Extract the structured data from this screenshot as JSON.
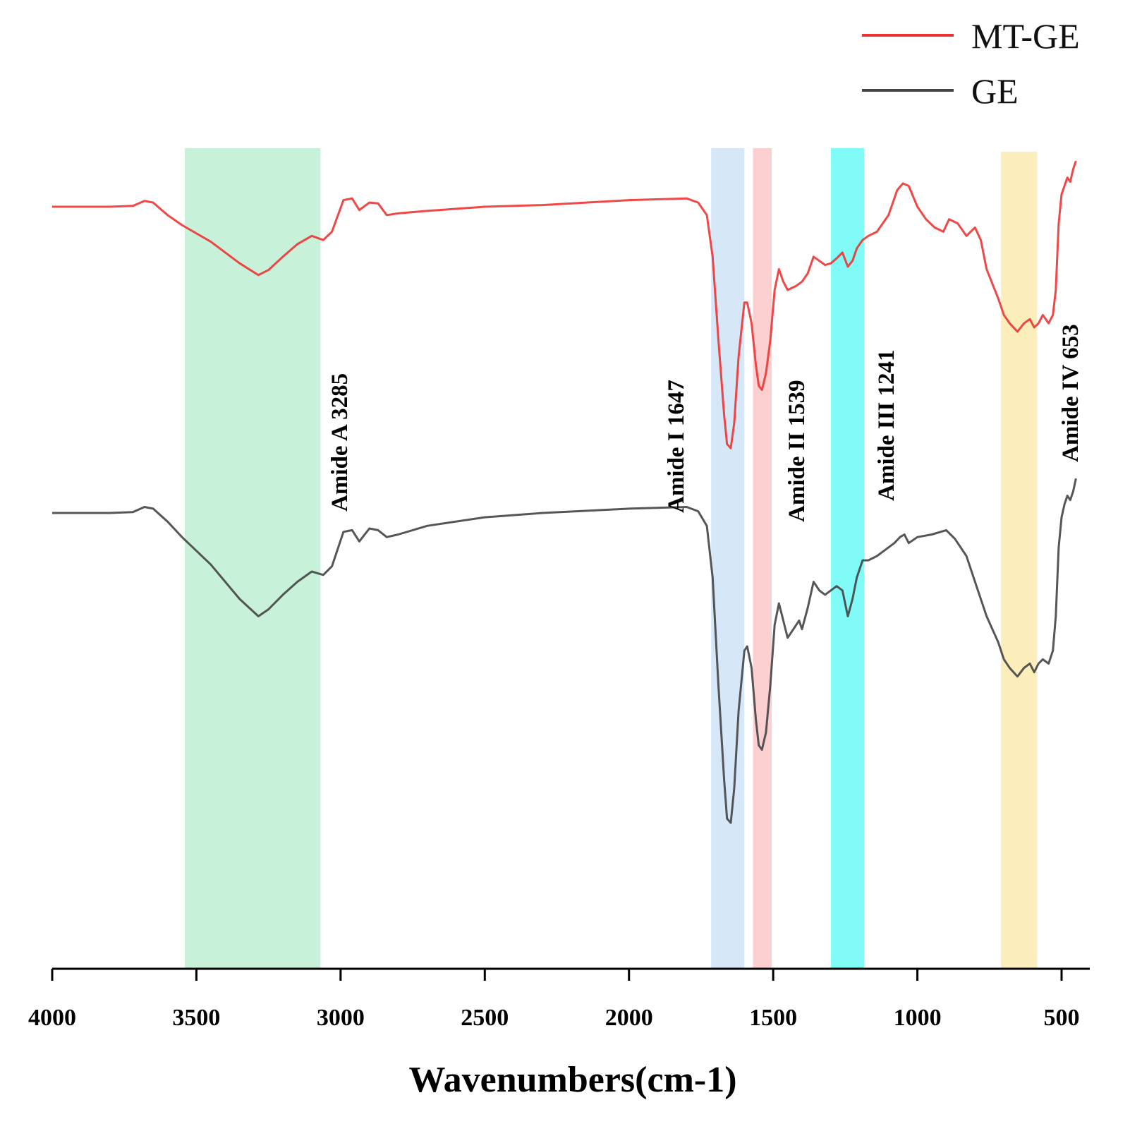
{
  "chart_data": {
    "type": "line",
    "title": "",
    "xlabel": "Wavenumbers(cm-1)",
    "ylabel": "",
    "xlim": [
      4000,
      450
    ],
    "x_reversed": true,
    "x_ticks": [
      4000,
      3500,
      3000,
      2500,
      2000,
      1500,
      1000,
      500
    ],
    "y_axis_shown": false,
    "grid": false,
    "legend_position": "top-right",
    "series": [
      {
        "name": "MT-GE",
        "color": "#ee3333",
        "points": [
          [
            4000,
            0.0
          ],
          [
            3800,
            0.0
          ],
          [
            3720,
            0.01
          ],
          [
            3680,
            0.07
          ],
          [
            3650,
            0.05
          ],
          [
            3600,
            -0.1
          ],
          [
            3550,
            -0.22
          ],
          [
            3450,
            -0.42
          ],
          [
            3350,
            -0.68
          ],
          [
            3285,
            -0.82
          ],
          [
            3250,
            -0.76
          ],
          [
            3200,
            -0.6
          ],
          [
            3150,
            -0.45
          ],
          [
            3100,
            -0.35
          ],
          [
            3060,
            -0.4
          ],
          [
            3030,
            -0.3
          ],
          [
            2990,
            0.08
          ],
          [
            2960,
            0.1
          ],
          [
            2935,
            -0.04
          ],
          [
            2900,
            0.05
          ],
          [
            2870,
            0.04
          ],
          [
            2840,
            -0.1
          ],
          [
            2800,
            -0.08
          ],
          [
            2700,
            -0.05
          ],
          [
            2500,
            0.0
          ],
          [
            2300,
            0.02
          ],
          [
            2000,
            0.08
          ],
          [
            1800,
            0.1
          ],
          [
            1760,
            0.05
          ],
          [
            1730,
            -0.1
          ],
          [
            1710,
            -0.6
          ],
          [
            1690,
            -1.6
          ],
          [
            1670,
            -2.5
          ],
          [
            1660,
            -2.85
          ],
          [
            1647,
            -2.9
          ],
          [
            1635,
            -2.6
          ],
          [
            1620,
            -1.8
          ],
          [
            1600,
            -1.15
          ],
          [
            1590,
            -1.15
          ],
          [
            1575,
            -1.4
          ],
          [
            1560,
            -1.9
          ],
          [
            1550,
            -2.15
          ],
          [
            1539,
            -2.2
          ],
          [
            1525,
            -2.0
          ],
          [
            1510,
            -1.6
          ],
          [
            1495,
            -1.0
          ],
          [
            1480,
            -0.75
          ],
          [
            1465,
            -0.9
          ],
          [
            1450,
            -1.0
          ],
          [
            1420,
            -0.95
          ],
          [
            1400,
            -0.9
          ],
          [
            1380,
            -0.8
          ],
          [
            1360,
            -0.6
          ],
          [
            1340,
            -0.65
          ],
          [
            1320,
            -0.7
          ],
          [
            1300,
            -0.68
          ],
          [
            1280,
            -0.62
          ],
          [
            1260,
            -0.55
          ],
          [
            1241,
            -0.72
          ],
          [
            1225,
            -0.65
          ],
          [
            1210,
            -0.5
          ],
          [
            1190,
            -0.4
          ],
          [
            1170,
            -0.35
          ],
          [
            1140,
            -0.3
          ],
          [
            1100,
            -0.1
          ],
          [
            1070,
            0.2
          ],
          [
            1050,
            0.28
          ],
          [
            1030,
            0.25
          ],
          [
            1000,
            0.0
          ],
          [
            970,
            -0.15
          ],
          [
            940,
            -0.25
          ],
          [
            910,
            -0.3
          ],
          [
            890,
            -0.15
          ],
          [
            860,
            -0.2
          ],
          [
            830,
            -0.35
          ],
          [
            800,
            -0.25
          ],
          [
            780,
            -0.4
          ],
          [
            760,
            -0.75
          ],
          [
            720,
            -1.1
          ],
          [
            700,
            -1.3
          ],
          [
            680,
            -1.4
          ],
          [
            653,
            -1.5
          ],
          [
            630,
            -1.4
          ],
          [
            610,
            -1.35
          ],
          [
            595,
            -1.45
          ],
          [
            580,
            -1.4
          ],
          [
            565,
            -1.3
          ],
          [
            545,
            -1.4
          ],
          [
            530,
            -1.3
          ],
          [
            520,
            -1.0
          ],
          [
            510,
            -0.2
          ],
          [
            500,
            0.15
          ],
          [
            490,
            0.25
          ],
          [
            480,
            0.35
          ],
          [
            470,
            0.3
          ],
          [
            460,
            0.45
          ],
          [
            450,
            0.55
          ]
        ]
      },
      {
        "name": "GE",
        "color": "#444444",
        "points": [
          [
            4000,
            0.0
          ],
          [
            3800,
            0.0
          ],
          [
            3720,
            0.01
          ],
          [
            3680,
            0.07
          ],
          [
            3650,
            0.05
          ],
          [
            3600,
            -0.1
          ],
          [
            3550,
            -0.28
          ],
          [
            3450,
            -0.6
          ],
          [
            3350,
            -1.0
          ],
          [
            3285,
            -1.2
          ],
          [
            3250,
            -1.12
          ],
          [
            3200,
            -0.95
          ],
          [
            3150,
            -0.8
          ],
          [
            3100,
            -0.68
          ],
          [
            3060,
            -0.72
          ],
          [
            3030,
            -0.62
          ],
          [
            2990,
            -0.22
          ],
          [
            2960,
            -0.2
          ],
          [
            2935,
            -0.33
          ],
          [
            2900,
            -0.18
          ],
          [
            2870,
            -0.2
          ],
          [
            2840,
            -0.28
          ],
          [
            2800,
            -0.25
          ],
          [
            2700,
            -0.15
          ],
          [
            2500,
            -0.05
          ],
          [
            2300,
            0.0
          ],
          [
            2000,
            0.05
          ],
          [
            1800,
            0.07
          ],
          [
            1760,
            0.02
          ],
          [
            1730,
            -0.15
          ],
          [
            1710,
            -0.75
          ],
          [
            1690,
            -2.0
          ],
          [
            1670,
            -3.1
          ],
          [
            1660,
            -3.55
          ],
          [
            1647,
            -3.6
          ],
          [
            1635,
            -3.2
          ],
          [
            1620,
            -2.3
          ],
          [
            1600,
            -1.6
          ],
          [
            1590,
            -1.55
          ],
          [
            1575,
            -1.8
          ],
          [
            1560,
            -2.4
          ],
          [
            1550,
            -2.7
          ],
          [
            1539,
            -2.75
          ],
          [
            1525,
            -2.55
          ],
          [
            1510,
            -2.0
          ],
          [
            1495,
            -1.3
          ],
          [
            1480,
            -1.05
          ],
          [
            1465,
            -1.25
          ],
          [
            1450,
            -1.45
          ],
          [
            1430,
            -1.35
          ],
          [
            1410,
            -1.25
          ],
          [
            1400,
            -1.35
          ],
          [
            1380,
            -1.1
          ],
          [
            1360,
            -0.8
          ],
          [
            1340,
            -0.9
          ],
          [
            1320,
            -0.95
          ],
          [
            1300,
            -0.9
          ],
          [
            1280,
            -0.85
          ],
          [
            1260,
            -0.9
          ],
          [
            1241,
            -1.2
          ],
          [
            1225,
            -1.0
          ],
          [
            1210,
            -0.75
          ],
          [
            1190,
            -0.55
          ],
          [
            1170,
            -0.55
          ],
          [
            1140,
            -0.5
          ],
          [
            1120,
            -0.45
          ],
          [
            1100,
            -0.4
          ],
          [
            1080,
            -0.35
          ],
          [
            1060,
            -0.28
          ],
          [
            1045,
            -0.25
          ],
          [
            1030,
            -0.35
          ],
          [
            1000,
            -0.28
          ],
          [
            950,
            -0.25
          ],
          [
            900,
            -0.2
          ],
          [
            870,
            -0.3
          ],
          [
            830,
            -0.5
          ],
          [
            800,
            -0.8
          ],
          [
            760,
            -1.2
          ],
          [
            720,
            -1.5
          ],
          [
            700,
            -1.7
          ],
          [
            680,
            -1.8
          ],
          [
            653,
            -1.9
          ],
          [
            630,
            -1.8
          ],
          [
            610,
            -1.75
          ],
          [
            595,
            -1.85
          ],
          [
            580,
            -1.75
          ],
          [
            565,
            -1.7
          ],
          [
            545,
            -1.75
          ],
          [
            530,
            -1.6
          ],
          [
            520,
            -1.2
          ],
          [
            510,
            -0.4
          ],
          [
            500,
            -0.05
          ],
          [
            490,
            0.1
          ],
          [
            480,
            0.2
          ],
          [
            470,
            0.15
          ],
          [
            460,
            0.25
          ],
          [
            450,
            0.4
          ]
        ]
      }
    ],
    "bands": [
      {
        "from": 3540,
        "to": 3070,
        "color": "#c8f1d9"
      },
      {
        "from": 1715,
        "to": 1600,
        "color": "#d6e7f8"
      },
      {
        "from": 1570,
        "to": 1505,
        "color": "#fcd0d0"
      },
      {
        "from": 1300,
        "to": 1185,
        "color": "#80fbf8"
      },
      {
        "from": 710,
        "to": 585,
        "color": "#fbeebb"
      }
    ],
    "annotations": [
      {
        "text": "Amide A 3285",
        "x": 3285
      },
      {
        "text": "Amide I 1647",
        "x": 1647
      },
      {
        "text": "Amide II 1539",
        "x": 1539
      },
      {
        "text": "Amide III 1241",
        "x": 1241
      },
      {
        "text": "Amide IV 653",
        "x": 653
      }
    ]
  }
}
